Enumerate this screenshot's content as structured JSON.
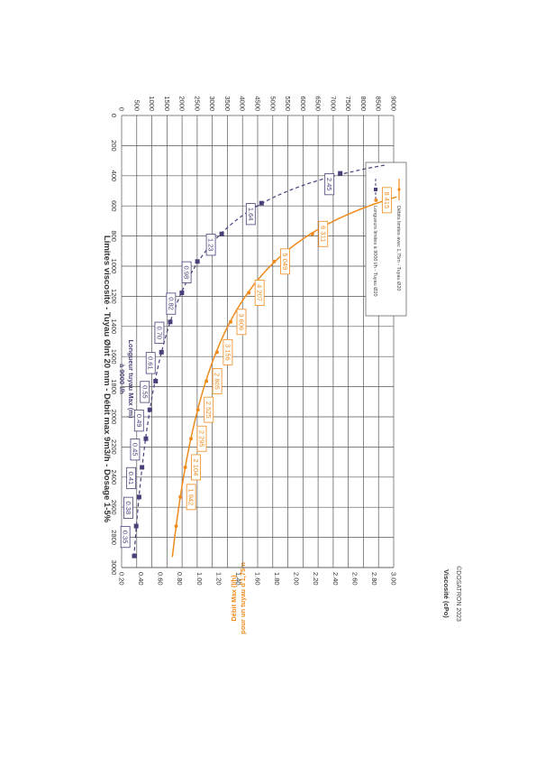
{
  "chart_data": {
    "type": "line",
    "title": "Limites viscosité - Tuyau ØInt 20 mm - Débit max 9m3/h - Dosage 1-5%",
    "xlabel": "Viscosité (cPo)",
    "y1label_line1": "Débit Max (l/h)",
    "y1label_line2": "pour un tuyau d'1,75m",
    "y2label_line1": "Longueur tuyau Max (m)",
    "y2label_line2": "à 9000 l/h",
    "xlim": [
      0,
      3000
    ],
    "y1lim": [
      0,
      9000
    ],
    "y2lim": [
      0.2,
      3.0
    ],
    "x_ticks": [
      "0",
      "200",
      "400",
      "600",
      "800",
      "1000",
      "1200",
      "1400",
      "1600",
      "1800",
      "2000",
      "2200",
      "2400",
      "2600",
      "2800",
      "3000"
    ],
    "y1_ticks": [
      "0",
      "500",
      "1000",
      "1500",
      "2000",
      "2500",
      "3000",
      "3500",
      "4000",
      "4500",
      "5000",
      "5500",
      "6000",
      "6500",
      "7000",
      "7500",
      "8000",
      "8500",
      "9000"
    ],
    "y2_ticks": [
      "0.20",
      "0.40",
      "0.60",
      "0.80",
      "1.00",
      "1.20",
      "1.40",
      "1.60",
      "1.80",
      "2.00",
      "2.20",
      "2.40",
      "2.60",
      "2.80",
      "3.00"
    ],
    "grid": true,
    "legend_position": "top-right",
    "series": [
      {
        "name": "Débits limites avec 1,75m - Tuyau Ø20",
        "axis": "left",
        "color": "#ef8b1c",
        "style": "solid",
        "x": [
          562,
          786,
          969,
          1177,
          1370,
          1571,
          1763,
          1953,
          2145,
          2335,
          2532,
          2725
        ],
        "y": [
          8415,
          6311,
          5049,
          4207,
          3606,
          3156,
          2805,
          2525,
          2295,
          2104,
          1942,
          1803
        ],
        "labels": [
          "8 415",
          "6 311",
          "5 049",
          "4 207",
          "3 606",
          "3 156",
          "2 805",
          "2 525",
          "2 295",
          "2 104",
          "1 942",
          ""
        ]
      },
      {
        "name": "Longueurs limites à 9000 l/h - Tuyau Ø20",
        "axis": "right",
        "color": "#4b3f7a",
        "style": "dashed",
        "x": [
          384,
          582,
          786,
          969,
          1177,
          1370,
          1571,
          1763,
          1953,
          2145,
          2335,
          2532,
          2725,
          2923
        ],
        "y": [
          2.45,
          1.64,
          1.23,
          0.98,
          0.82,
          0.7,
          0.61,
          0.55,
          0.49,
          0.45,
          0.41,
          0.38,
          0.35,
          0.33
        ],
        "labels": [
          "2.45",
          "1.64",
          "1.23",
          "0.98",
          "0.82",
          "0.70",
          "0.61",
          "0.55",
          "0.49",
          "0.45",
          "0.41",
          "0.38",
          "0.35",
          ""
        ]
      }
    ]
  },
  "copyright": "©DOSATRON 2023"
}
